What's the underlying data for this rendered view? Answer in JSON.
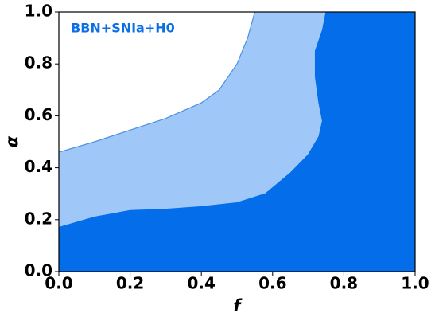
{
  "chart_data": {
    "type": "contour",
    "xlabel": "f",
    "ylabel": "α",
    "annotation": "BBN+SNIa+H0",
    "annotation_color": "#0a6fe6",
    "xlim": [
      0,
      1
    ],
    "ylim": [
      0,
      1
    ],
    "xticks": [
      {
        "value": 0,
        "label": "0.0"
      },
      0.2,
      0.4,
      0.6,
      0.8,
      {
        "value": 1,
        "label": "1.0"
      }
    ],
    "yticks": [
      {
        "value": 0,
        "label": "0.0"
      },
      0.2,
      0.4,
      0.6,
      0.8,
      {
        "value": 1,
        "label": "1.0"
      }
    ],
    "series": [
      {
        "color": "#9fc7f7",
        "edge": "#4a90e0",
        "x": [
          0,
          0.1,
          0.2,
          0.3,
          0.4,
          0.45,
          0.5,
          0.53,
          0.55
        ],
        "values": [
          0.46,
          0.5,
          0.545,
          0.59,
          0.65,
          0.7,
          0.8,
          0.9,
          1.0
        ]
      },
      {
        "color": "#046eea",
        "edge": "#046eea",
        "x": [
          0,
          0.1,
          0.2,
          0.3,
          0.4,
          0.5,
          0.58,
          0.65,
          0.7,
          0.73,
          0.74,
          0.73,
          0.72,
          0.72,
          0.74,
          0.75
        ],
        "values": [
          0.17,
          0.21,
          0.235,
          0.24,
          0.25,
          0.265,
          0.3,
          0.38,
          0.45,
          0.52,
          0.58,
          0.65,
          0.75,
          0.85,
          0.93,
          1.0
        ]
      }
    ]
  }
}
